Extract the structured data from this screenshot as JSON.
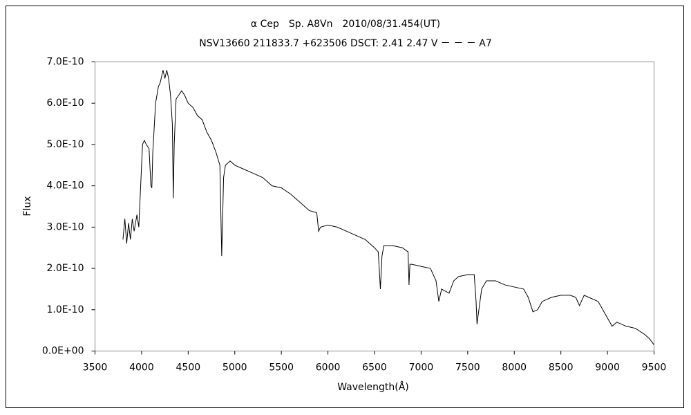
{
  "chart_data": {
    "type": "line",
    "title": "α Cep　Sp. A8Vn　2010/08/31.454(UT)",
    "subtitle": "NSV13660 211833.7 +623506 DSCT: 2.41 2.47 V － － － A7",
    "x_label": "Wavelength(Å)",
    "y_label": "Flux",
    "color": "#000000",
    "grid": false,
    "xlim": [
      3500,
      9500
    ],
    "xticks": [
      3500,
      4000,
      4500,
      5000,
      5500,
      6000,
      6500,
      7000,
      7500,
      8000,
      8500,
      9000,
      9500
    ],
    "ylim": [
      0,
      7e-10
    ],
    "yticks": [
      {
        "value": 0,
        "label": "0.0E+00"
      },
      {
        "value": 1e-10,
        "label": "1.0E-10"
      },
      {
        "value": 2e-10,
        "label": "2.0E-10"
      },
      {
        "value": 3e-10,
        "label": "3.0E-10"
      },
      {
        "value": 4e-10,
        "label": "4.0E-10"
      },
      {
        "value": 5e-10,
        "label": "5.0E-10"
      },
      {
        "value": 6e-10,
        "label": "6.0E-10"
      },
      {
        "value": 7e-10,
        "label": "7.0E-10"
      }
    ],
    "x": [
      3800,
      3820,
      3840,
      3860,
      3880,
      3900,
      3920,
      3950,
      3970,
      3990,
      4010,
      4030,
      4050,
      4080,
      4100,
      4110,
      4120,
      4150,
      4180,
      4200,
      4230,
      4250,
      4270,
      4290,
      4310,
      4330,
      4340,
      4350,
      4370,
      4400,
      4430,
      4460,
      4500,
      4550,
      4600,
      4650,
      4700,
      4750,
      4800,
      4840,
      4860,
      4880,
      4900,
      4950,
      5000,
      5100,
      5200,
      5300,
      5400,
      5500,
      5600,
      5700,
      5800,
      5880,
      5900,
      5920,
      6000,
      6100,
      6200,
      6300,
      6400,
      6500,
      6540,
      6563,
      6580,
      6600,
      6700,
      6800,
      6860,
      6870,
      6880,
      6900,
      7000,
      7100,
      7160,
      7190,
      7220,
      7300,
      7350,
      7400,
      7500,
      7570,
      7590,
      7600,
      7620,
      7650,
      7700,
      7800,
      7900,
      8000,
      8100,
      8150,
      8200,
      8250,
      8300,
      8400,
      8500,
      8600,
      8660,
      8700,
      8750,
      8800,
      8900,
      8950,
      9000,
      9050,
      9100,
      9200,
      9300,
      9400,
      9450,
      9500
    ],
    "values": [
      2.7e-10,
      3.2e-10,
      2.6e-10,
      3.1e-10,
      2.7e-10,
      3.2e-10,
      2.9e-10,
      3.3e-10,
      3e-10,
      4e-10,
      5e-10,
      5.1e-10,
      5e-10,
      4.9e-10,
      4e-10,
      3.95e-10,
      4.8e-10,
      6e-10,
      6.4e-10,
      6.5e-10,
      6.8e-10,
      6.6e-10,
      6.8e-10,
      6.6e-10,
      6.2e-10,
      5.5e-10,
      3.7e-10,
      5e-10,
      6.1e-10,
      6.2e-10,
      6.3e-10,
      6.2e-10,
      6e-10,
      5.9e-10,
      5.7e-10,
      5.6e-10,
      5.3e-10,
      5.1e-10,
      4.8e-10,
      4.5e-10,
      2.3e-10,
      4.2e-10,
      4.5e-10,
      4.6e-10,
      4.5e-10,
      4.4e-10,
      4.3e-10,
      4.2e-10,
      4e-10,
      3.95e-10,
      3.8e-10,
      3.6e-10,
      3.4e-10,
      3.35e-10,
      2.9e-10,
      3e-10,
      3.05e-10,
      3e-10,
      2.9e-10,
      2.8e-10,
      2.7e-10,
      2.5e-10,
      2.4e-10,
      1.5e-10,
      2.3e-10,
      2.55e-10,
      2.55e-10,
      2.5e-10,
      2.4e-10,
      1.6e-10,
      2.1e-10,
      2.1e-10,
      2.05e-10,
      2e-10,
      1.7e-10,
      1.2e-10,
      1.5e-10,
      1.4e-10,
      1.7e-10,
      1.8e-10,
      1.85e-10,
      1.85e-10,
      1.2e-10,
      6.5e-11,
      1e-10,
      1.5e-10,
      1.7e-10,
      1.7e-10,
      1.6e-10,
      1.55e-10,
      1.5e-10,
      1.3e-10,
      9.5e-11,
      1e-10,
      1.2e-10,
      1.3e-10,
      1.35e-10,
      1.35e-10,
      1.3e-10,
      1.1e-10,
      1.35e-10,
      1.3e-10,
      1.2e-10,
      1e-10,
      8e-11,
      6e-11,
      7e-11,
      6e-11,
      5.5e-11,
      4e-11,
      3e-11,
      1.5e-11
    ]
  }
}
